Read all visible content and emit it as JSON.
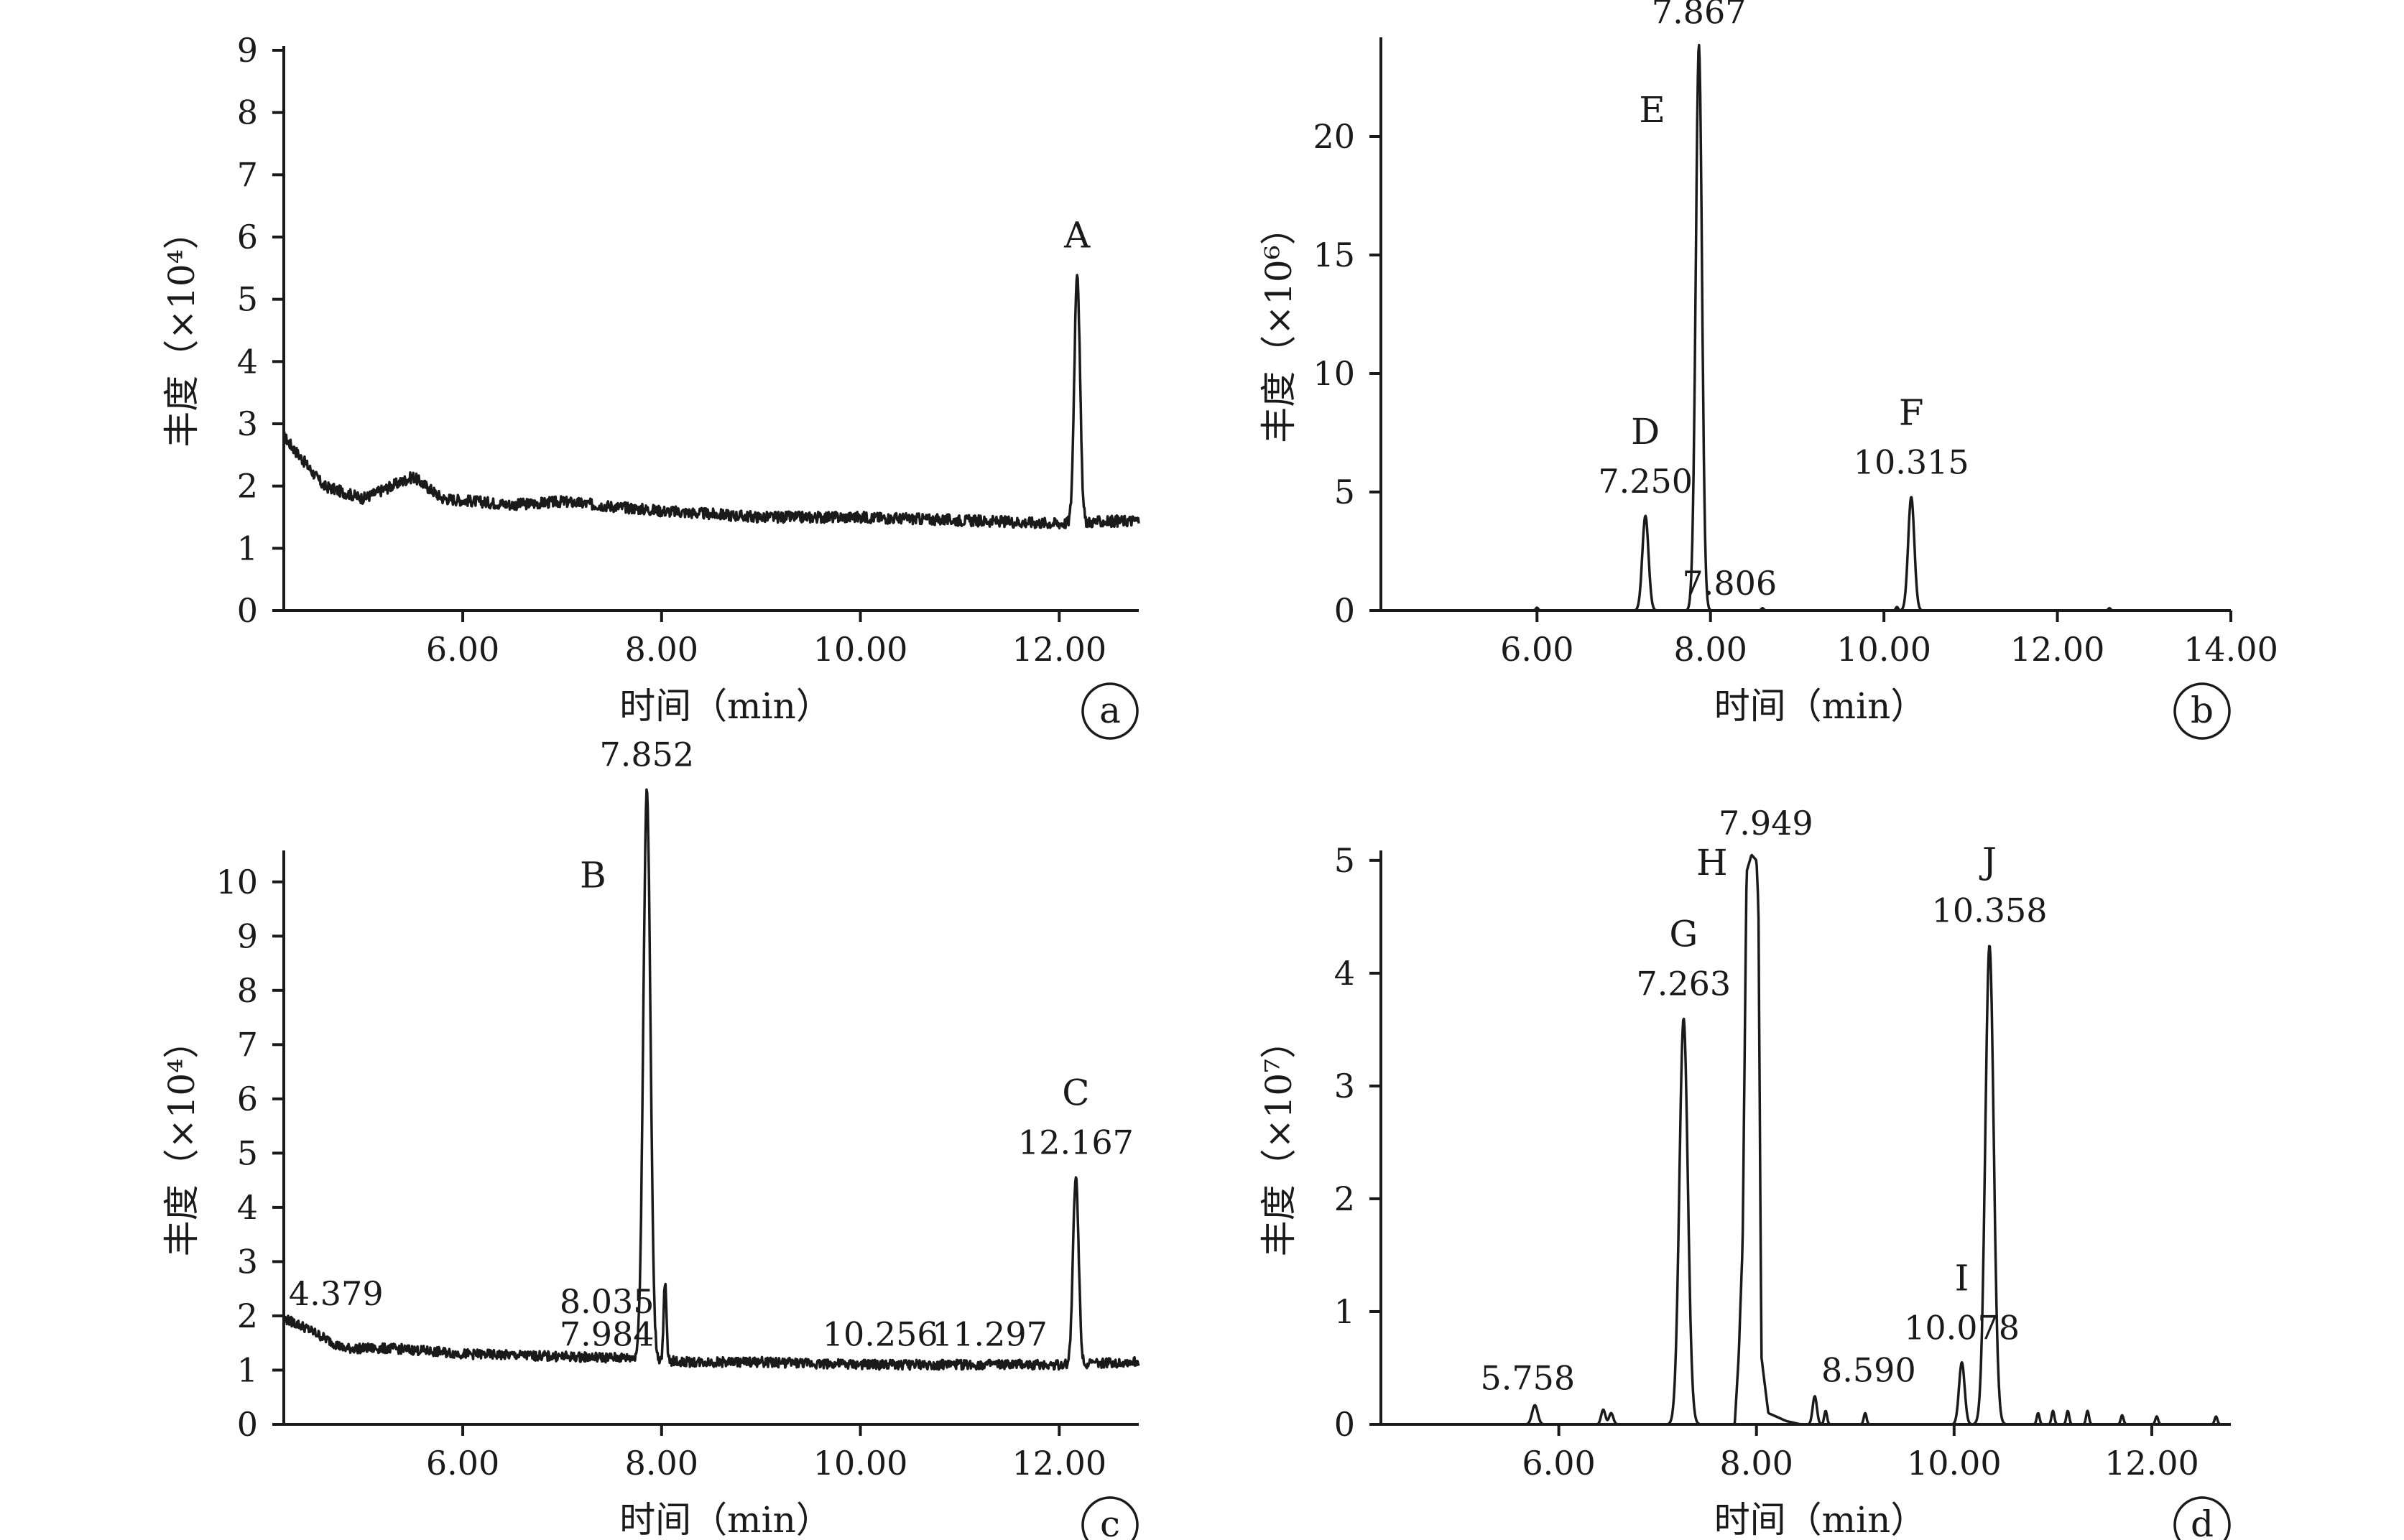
{
  "chart_data": [
    {
      "panel": "a",
      "type": "line",
      "xlabel": "时间（min）",
      "ylabel": "丰度（×10⁴）",
      "xlim": [
        4.2,
        12.8
      ],
      "ylim": [
        0,
        9
      ],
      "xticks": [
        6,
        8,
        10,
        12
      ],
      "xtick_labels": [
        "6.00",
        "8.00",
        "10.00",
        "12.00"
      ],
      "yticks": [
        0,
        1,
        2,
        3,
        4,
        5,
        6,
        7,
        8,
        9
      ],
      "baseline": [
        [
          4.2,
          2.8
        ],
        [
          4.3,
          2.6
        ],
        [
          4.6,
          2.0
        ],
        [
          5.0,
          1.8
        ],
        [
          5.5,
          2.15
        ],
        [
          5.8,
          1.8
        ],
        [
          6.5,
          1.7
        ],
        [
          7.0,
          1.75
        ],
        [
          8.0,
          1.6
        ],
        [
          9.0,
          1.5
        ],
        [
          10.0,
          1.5
        ],
        [
          11.0,
          1.45
        ],
        [
          12.0,
          1.4
        ],
        [
          12.8,
          1.45
        ]
      ],
      "peaks": [
        {
          "rt": 12.18,
          "height": 4.05,
          "width": 0.04,
          "label": "A",
          "rt_label": ""
        }
      ],
      "annotations": []
    },
    {
      "panel": "b",
      "type": "line",
      "xlabel": "时间（min）",
      "ylabel": "丰度（×10⁶）",
      "xlim": [
        4.2,
        14.0
      ],
      "ylim": [
        0,
        24
      ],
      "xticks": [
        6,
        8,
        10,
        12,
        14
      ],
      "xtick_labels": [
        "6.00",
        "8.00",
        "10.00",
        "12.00",
        "14.00"
      ],
      "yticks": [
        0,
        5,
        10,
        15,
        20
      ],
      "baseline": [
        [
          4.2,
          0
        ],
        [
          14.0,
          0
        ]
      ],
      "peaks": [
        {
          "rt": 7.25,
          "height": 4.0,
          "width": 0.05,
          "label": "D",
          "rt_label": "7.250"
        },
        {
          "rt": 7.806,
          "height": 0.7,
          "width": 0.04,
          "label": "",
          "rt_label": "7.806"
        },
        {
          "rt": 7.867,
          "height": 23.8,
          "width": 0.05,
          "label": "E",
          "rt_label": "7.867"
        },
        {
          "rt": 10.315,
          "height": 4.8,
          "width": 0.05,
          "label": "F",
          "rt_label": "10.315"
        },
        {
          "rt": 6.0,
          "height": 0.12,
          "width": 0.02,
          "label": "",
          "rt_label": ""
        },
        {
          "rt": 8.6,
          "height": 0.1,
          "width": 0.02,
          "label": "",
          "rt_label": ""
        },
        {
          "rt": 10.15,
          "height": 0.15,
          "width": 0.02,
          "label": "",
          "rt_label": ""
        },
        {
          "rt": 12.6,
          "height": 0.1,
          "width": 0.02,
          "label": "",
          "rt_label": ""
        }
      ],
      "annotations": []
    },
    {
      "panel": "c",
      "type": "line",
      "xlabel": "时间（min）",
      "ylabel": "丰度（×10⁴）",
      "xlim": [
        4.2,
        12.8
      ],
      "ylim": [
        0,
        10.5
      ],
      "xticks": [
        6,
        8,
        10,
        12
      ],
      "xtick_labels": [
        "6.00",
        "8.00",
        "10.00",
        "12.00"
      ],
      "yticks": [
        0,
        1,
        2,
        3,
        4,
        5,
        6,
        7,
        8,
        9,
        10
      ],
      "baseline": [
        [
          4.2,
          1.95
        ],
        [
          4.4,
          1.8
        ],
        [
          4.8,
          1.4
        ],
        [
          5.3,
          1.4
        ],
        [
          6.0,
          1.3
        ],
        [
          7.0,
          1.25
        ],
        [
          7.8,
          1.22
        ],
        [
          8.2,
          1.15
        ],
        [
          9.0,
          1.15
        ],
        [
          10.0,
          1.1
        ],
        [
          11.0,
          1.1
        ],
        [
          12.0,
          1.1
        ],
        [
          12.8,
          1.15
        ]
      ],
      "peaks": [
        {
          "rt": 7.852,
          "height": 10.5,
          "width": 0.05,
          "label": "B",
          "rt_label": "7.852"
        },
        {
          "rt": 12.167,
          "height": 3.45,
          "width": 0.04,
          "label": "C",
          "rt_label": "12.167"
        },
        {
          "rt": 8.035,
          "height": 1.4,
          "width": 0.02,
          "label": "",
          "rt_label": ""
        }
      ],
      "annotations": [
        {
          "x": 4.25,
          "y": 2.2,
          "text": "4.379",
          "anchor": "start"
        },
        {
          "x": 7.45,
          "y": 2.05,
          "text": "8.035",
          "anchor": "middle"
        },
        {
          "x": 7.45,
          "y": 1.45,
          "text": "7.984",
          "anchor": "middle"
        },
        {
          "x": 10.2,
          "y": 1.45,
          "text": "10.256",
          "anchor": "middle"
        },
        {
          "x": 11.3,
          "y": 1.45,
          "text": "11.297",
          "anchor": "middle"
        }
      ]
    },
    {
      "panel": "d",
      "type": "line",
      "xlabel": "时间（min）",
      "ylabel": "丰度（×10⁷）",
      "xlim": [
        4.2,
        12.8
      ],
      "ylim": [
        0,
        5.05
      ],
      "xticks": [
        6,
        8,
        10,
        12
      ],
      "xtick_labels": [
        "6.00",
        "8.00",
        "10.00",
        "12.00"
      ],
      "yticks": [
        0,
        1,
        2,
        3,
        4,
        5
      ],
      "baseline": [
        [
          4.2,
          0
        ],
        [
          12.8,
          0
        ]
      ],
      "peaks": [
        {
          "rt": 5.758,
          "height": 0.17,
          "width": 0.04,
          "label": "",
          "rt_label": "5.758"
        },
        {
          "rt": 6.45,
          "height": 0.13,
          "width": 0.03,
          "label": "",
          "rt_label": ""
        },
        {
          "rt": 6.53,
          "height": 0.1,
          "width": 0.03,
          "label": "",
          "rt_label": ""
        },
        {
          "rt": 7.263,
          "height": 3.6,
          "width": 0.06,
          "label": "G",
          "rt_label": "7.263"
        },
        {
          "rt": 8.59,
          "height": 0.25,
          "width": 0.03,
          "label": "",
          "rt_label": "8.590"
        },
        {
          "rt": 8.7,
          "height": 0.12,
          "width": 0.02,
          "label": "",
          "rt_label": ""
        },
        {
          "rt": 9.1,
          "height": 0.1,
          "width": 0.02,
          "label": "",
          "rt_label": ""
        },
        {
          "rt": 10.078,
          "height": 0.55,
          "width": 0.04,
          "label": "I",
          "rt_label": "10.078"
        },
        {
          "rt": 10.358,
          "height": 4.25,
          "width": 0.06,
          "label": "J",
          "rt_label": "10.358"
        },
        {
          "rt": 10.85,
          "height": 0.1,
          "width": 0.02,
          "label": "",
          "rt_label": ""
        },
        {
          "rt": 11.0,
          "height": 0.12,
          "width": 0.02,
          "label": "",
          "rt_label": ""
        },
        {
          "rt": 11.15,
          "height": 0.12,
          "width": 0.02,
          "label": "",
          "rt_label": ""
        },
        {
          "rt": 11.35,
          "height": 0.12,
          "width": 0.02,
          "label": "",
          "rt_label": ""
        },
        {
          "rt": 11.7,
          "height": 0.08,
          "width": 0.02,
          "label": "",
          "rt_label": ""
        },
        {
          "rt": 12.05,
          "height": 0.07,
          "width": 0.02,
          "label": "",
          "rt_label": ""
        },
        {
          "rt": 12.65,
          "height": 0.07,
          "width": 0.02,
          "label": "",
          "rt_label": ""
        }
      ],
      "broad_peaks": [
        {
          "points": [
            [
              7.78,
              0
            ],
            [
              7.82,
              0.6
            ],
            [
              7.86,
              1.6
            ],
            [
              7.9,
              4.9
            ],
            [
              7.95,
              5.05
            ],
            [
              8.0,
              5.0
            ],
            [
              8.02,
              4.6
            ],
            [
              8.05,
              0.6
            ],
            [
              8.12,
              0.1
            ],
            [
              8.3,
              0.03
            ],
            [
              8.45,
              0
            ]
          ],
          "label": "H",
          "rt_label": "7.949"
        }
      ],
      "annotations": []
    }
  ]
}
